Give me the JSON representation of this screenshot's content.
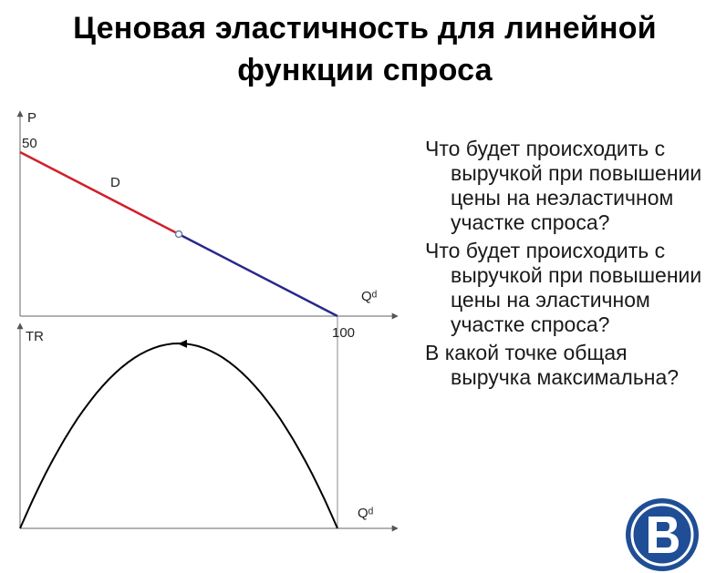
{
  "title": {
    "line1": "Ценовая эластичность для линейной",
    "line2": "функции спроса"
  },
  "questions": [
    "Что будет происходить с выручкой при повышении цены на неэластичном участке спроса?",
    "Что будет происходить с выручкой при повышении цены на эластичном участке спроса?",
    "В какой точке  общая выручка максимальна?"
  ],
  "chart_data": [
    {
      "type": "line",
      "ylabel": "P",
      "xlabel": "Qᵈ",
      "curve_label": "D",
      "y_tick": "50",
      "x_tick": "100",
      "xlim": [
        0,
        100
      ],
      "ylim": [
        0,
        50
      ],
      "series": [
        {
          "x": [
            0,
            50
          ],
          "y": [
            50,
            25
          ],
          "color": "#d0202a"
        },
        {
          "x": [
            50,
            100
          ],
          "y": [
            25,
            0
          ],
          "color": "#28288c"
        }
      ],
      "midpoint": {
        "x": 50,
        "y": 25
      }
    },
    {
      "type": "line",
      "ylabel": "TR",
      "xlabel": "Qᵈ",
      "xlim": [
        0,
        100
      ],
      "series": [
        {
          "x": [
            0,
            10,
            20,
            30,
            40,
            50,
            60,
            70,
            80,
            90,
            100
          ],
          "y": [
            0,
            450,
            800,
            1050,
            1200,
            1250,
            1200,
            1050,
            800,
            450,
            0
          ],
          "color": "#000000"
        }
      ]
    }
  ],
  "colors": {
    "elastic": "#d0202a",
    "inelastic": "#28288c",
    "logo": "#1f4e96"
  },
  "logo": {
    "icon": "hse-logo-icon"
  }
}
